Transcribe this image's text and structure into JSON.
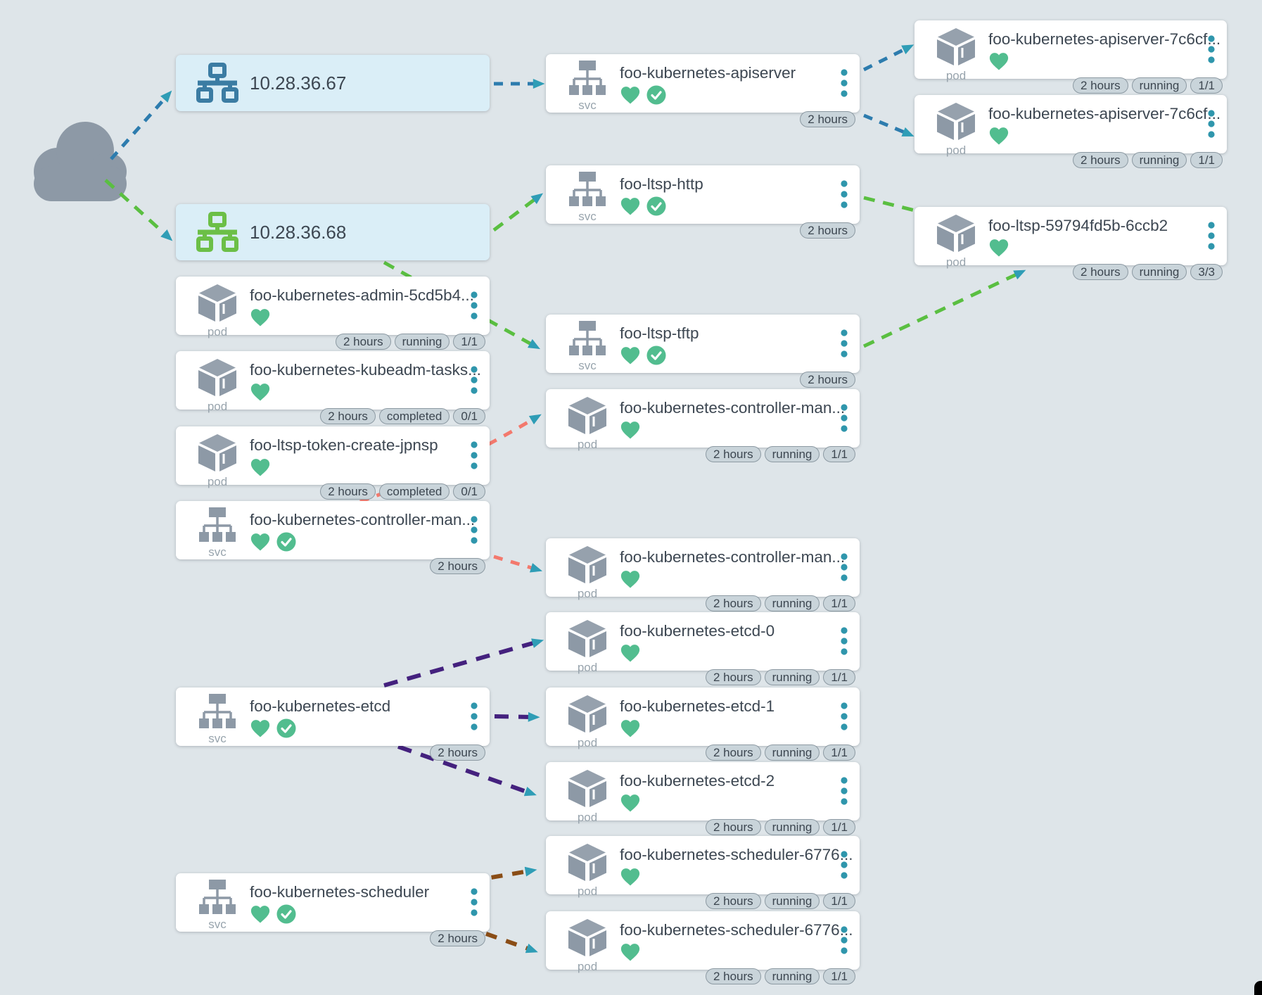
{
  "colors": {
    "background": "#dee5e9",
    "card": "#ffffff",
    "host_card": "#daeef7",
    "title": "#3d4752",
    "kind_label": "#98a4ad",
    "icon_gray": "#8d99a6",
    "heart": "#52bd8f",
    "menu_dots": "#2f96ac",
    "badge_bg": "#c9d4da",
    "badge_border": "#8d9aa3",
    "badge_text": "#3c4650",
    "arrow": "#2f9db6",
    "edge_blue": "#2d7cae",
    "edge_green": "#5abf41",
    "edge_red": "#f3796d",
    "edge_purple": "#44217e",
    "edge_brown": "#8a4d16",
    "host_icon_blue": "#3b7ca3",
    "host_icon_green": "#6cbf47",
    "corner": "#000000"
  },
  "cloud": {
    "icon": "cloud-icon"
  },
  "nodes": [
    {
      "id": "host-67",
      "kind": "host",
      "kind_label": "",
      "label": "10.28.36.67",
      "icon": "network-icon",
      "icon_color": "blue",
      "status_icons": [],
      "badges": [],
      "has_menu": false
    },
    {
      "id": "host-68",
      "kind": "host",
      "kind_label": "",
      "label": "10.28.36.68",
      "icon": "network-icon",
      "icon_color": "green",
      "status_icons": [],
      "badges": [],
      "has_menu": false
    },
    {
      "id": "svc-apiserver",
      "kind": "service",
      "kind_label": "svc",
      "label": "foo-kubernetes-apiserver",
      "icon": "service-tree-icon",
      "status_icons": [
        "heart-icon",
        "check-circle-icon"
      ],
      "badges": [
        "2 hours"
      ],
      "has_menu": true
    },
    {
      "id": "pod-apiserver-1",
      "kind": "pod",
      "kind_label": "pod",
      "label": "foo-kubernetes-apiserver-7c6cf...",
      "icon": "pod-cube-icon",
      "status_icons": [
        "heart-icon"
      ],
      "badges": [
        "2 hours",
        "running",
        "1/1"
      ],
      "has_menu": true
    },
    {
      "id": "pod-apiserver-2",
      "kind": "pod",
      "kind_label": "pod",
      "label": "foo-kubernetes-apiserver-7c6cf...",
      "icon": "pod-cube-icon",
      "status_icons": [
        "heart-icon"
      ],
      "badges": [
        "2 hours",
        "running",
        "1/1"
      ],
      "has_menu": true
    },
    {
      "id": "svc-ltsp-http",
      "kind": "service",
      "kind_label": "svc",
      "label": "foo-ltsp-http",
      "icon": "service-tree-icon",
      "status_icons": [
        "heart-icon",
        "check-circle-icon"
      ],
      "badges": [
        "2 hours"
      ],
      "has_menu": true
    },
    {
      "id": "pod-ltsp",
      "kind": "pod",
      "kind_label": "pod",
      "label": "foo-ltsp-59794fd5b-6ccb2",
      "icon": "pod-cube-icon",
      "status_icons": [
        "heart-icon"
      ],
      "badges": [
        "2 hours",
        "running",
        "3/3"
      ],
      "has_menu": true
    },
    {
      "id": "pod-admin",
      "kind": "pod",
      "kind_label": "pod",
      "label": "foo-kubernetes-admin-5cd5b4...",
      "icon": "pod-cube-icon",
      "status_icons": [
        "heart-icon"
      ],
      "badges": [
        "2 hours",
        "running",
        "1/1"
      ],
      "has_menu": true
    },
    {
      "id": "pod-kubeadm",
      "kind": "pod",
      "kind_label": "pod",
      "label": "foo-kubernetes-kubeadm-tasks...",
      "icon": "pod-cube-icon",
      "status_icons": [
        "heart-icon"
      ],
      "badges": [
        "2 hours",
        "completed",
        "0/1"
      ],
      "has_menu": true
    },
    {
      "id": "pod-token",
      "kind": "pod",
      "kind_label": "pod",
      "label": "foo-ltsp-token-create-jpnsp",
      "icon": "pod-cube-icon",
      "status_icons": [
        "heart-icon"
      ],
      "badges": [
        "2 hours",
        "completed",
        "0/1"
      ],
      "has_menu": true
    },
    {
      "id": "svc-ltsp-tftp",
      "kind": "service",
      "kind_label": "svc",
      "label": "foo-ltsp-tftp",
      "icon": "service-tree-icon",
      "status_icons": [
        "heart-icon",
        "check-circle-icon"
      ],
      "badges": [
        "2 hours"
      ],
      "has_menu": true
    },
    {
      "id": "pod-controller-manager-1",
      "kind": "pod",
      "kind_label": "pod",
      "label": "foo-kubernetes-controller-man...",
      "icon": "pod-cube-icon",
      "status_icons": [
        "heart-icon"
      ],
      "badges": [
        "2 hours",
        "running",
        "1/1"
      ],
      "has_menu": true
    },
    {
      "id": "svc-controller-manager",
      "kind": "service",
      "kind_label": "svc",
      "label": "foo-kubernetes-controller-man...",
      "icon": "service-tree-icon",
      "status_icons": [
        "heart-icon",
        "check-circle-icon"
      ],
      "badges": [
        "2 hours"
      ],
      "has_menu": true
    },
    {
      "id": "pod-controller-manager-2",
      "kind": "pod",
      "kind_label": "pod",
      "label": "foo-kubernetes-controller-man...",
      "icon": "pod-cube-icon",
      "status_icons": [
        "heart-icon"
      ],
      "badges": [
        "2 hours",
        "running",
        "1/1"
      ],
      "has_menu": true
    },
    {
      "id": "pod-etcd-0",
      "kind": "pod",
      "kind_label": "pod",
      "label": "foo-kubernetes-etcd-0",
      "icon": "pod-cube-icon",
      "status_icons": [
        "heart-icon"
      ],
      "badges": [
        "2 hours",
        "running",
        "1/1"
      ],
      "has_menu": true
    },
    {
      "id": "svc-etcd",
      "kind": "service",
      "kind_label": "svc",
      "label": "foo-kubernetes-etcd",
      "icon": "service-tree-icon",
      "status_icons": [
        "heart-icon",
        "check-circle-icon"
      ],
      "badges": [
        "2 hours"
      ],
      "has_menu": true
    },
    {
      "id": "pod-etcd-1",
      "kind": "pod",
      "kind_label": "pod",
      "label": "foo-kubernetes-etcd-1",
      "icon": "pod-cube-icon",
      "status_icons": [
        "heart-icon"
      ],
      "badges": [
        "2 hours",
        "running",
        "1/1"
      ],
      "has_menu": true
    },
    {
      "id": "pod-etcd-2",
      "kind": "pod",
      "kind_label": "pod",
      "label": "foo-kubernetes-etcd-2",
      "icon": "pod-cube-icon",
      "status_icons": [
        "heart-icon"
      ],
      "badges": [
        "2 hours",
        "running",
        "1/1"
      ],
      "has_menu": true
    },
    {
      "id": "pod-scheduler-1",
      "kind": "pod",
      "kind_label": "pod",
      "label": "foo-kubernetes-scheduler-6776...",
      "icon": "pod-cube-icon",
      "status_icons": [
        "heart-icon"
      ],
      "badges": [
        "2 hours",
        "running",
        "1/1"
      ],
      "has_menu": true
    },
    {
      "id": "svc-scheduler",
      "kind": "service",
      "kind_label": "svc",
      "label": "foo-kubernetes-scheduler",
      "icon": "service-tree-icon",
      "status_icons": [
        "heart-icon",
        "check-circle-icon"
      ],
      "badges": [
        "2 hours"
      ],
      "has_menu": true
    },
    {
      "id": "pod-scheduler-2",
      "kind": "pod",
      "kind_label": "pod",
      "label": "foo-kubernetes-scheduler-6776...",
      "icon": "pod-cube-icon",
      "status_icons": [
        "heart-icon"
      ],
      "badges": [
        "2 hours",
        "running",
        "1/1"
      ],
      "has_menu": true
    }
  ],
  "edges": [
    {
      "from": "cloud",
      "to": "host-67",
      "color": "blue"
    },
    {
      "from": "cloud",
      "to": "host-68",
      "color": "green"
    },
    {
      "from": "host-67",
      "to": "svc-apiserver",
      "color": "blue"
    },
    {
      "from": "svc-apiserver",
      "to": "pod-apiserver-1",
      "color": "blue"
    },
    {
      "from": "svc-apiserver",
      "to": "pod-apiserver-2",
      "color": "blue"
    },
    {
      "from": "host-68",
      "to": "svc-ltsp-http",
      "color": "green"
    },
    {
      "from": "svc-ltsp-http",
      "to": "pod-ltsp",
      "color": "green"
    },
    {
      "from": "host-68",
      "to": "svc-ltsp-tftp",
      "color": "green"
    },
    {
      "from": "svc-ltsp-tftp",
      "to": "pod-ltsp",
      "color": "green"
    },
    {
      "from": "svc-controller-manager",
      "to": "pod-controller-manager-1",
      "color": "red"
    },
    {
      "from": "svc-controller-manager",
      "to": "pod-controller-manager-2",
      "color": "red"
    },
    {
      "from": "svc-etcd",
      "to": "pod-etcd-0",
      "color": "purple"
    },
    {
      "from": "svc-etcd",
      "to": "pod-etcd-1",
      "color": "purple"
    },
    {
      "from": "svc-etcd",
      "to": "pod-etcd-2",
      "color": "purple"
    },
    {
      "from": "svc-scheduler",
      "to": "pod-scheduler-1",
      "color": "brown"
    },
    {
      "from": "svc-scheduler",
      "to": "pod-scheduler-2",
      "color": "brown"
    }
  ]
}
